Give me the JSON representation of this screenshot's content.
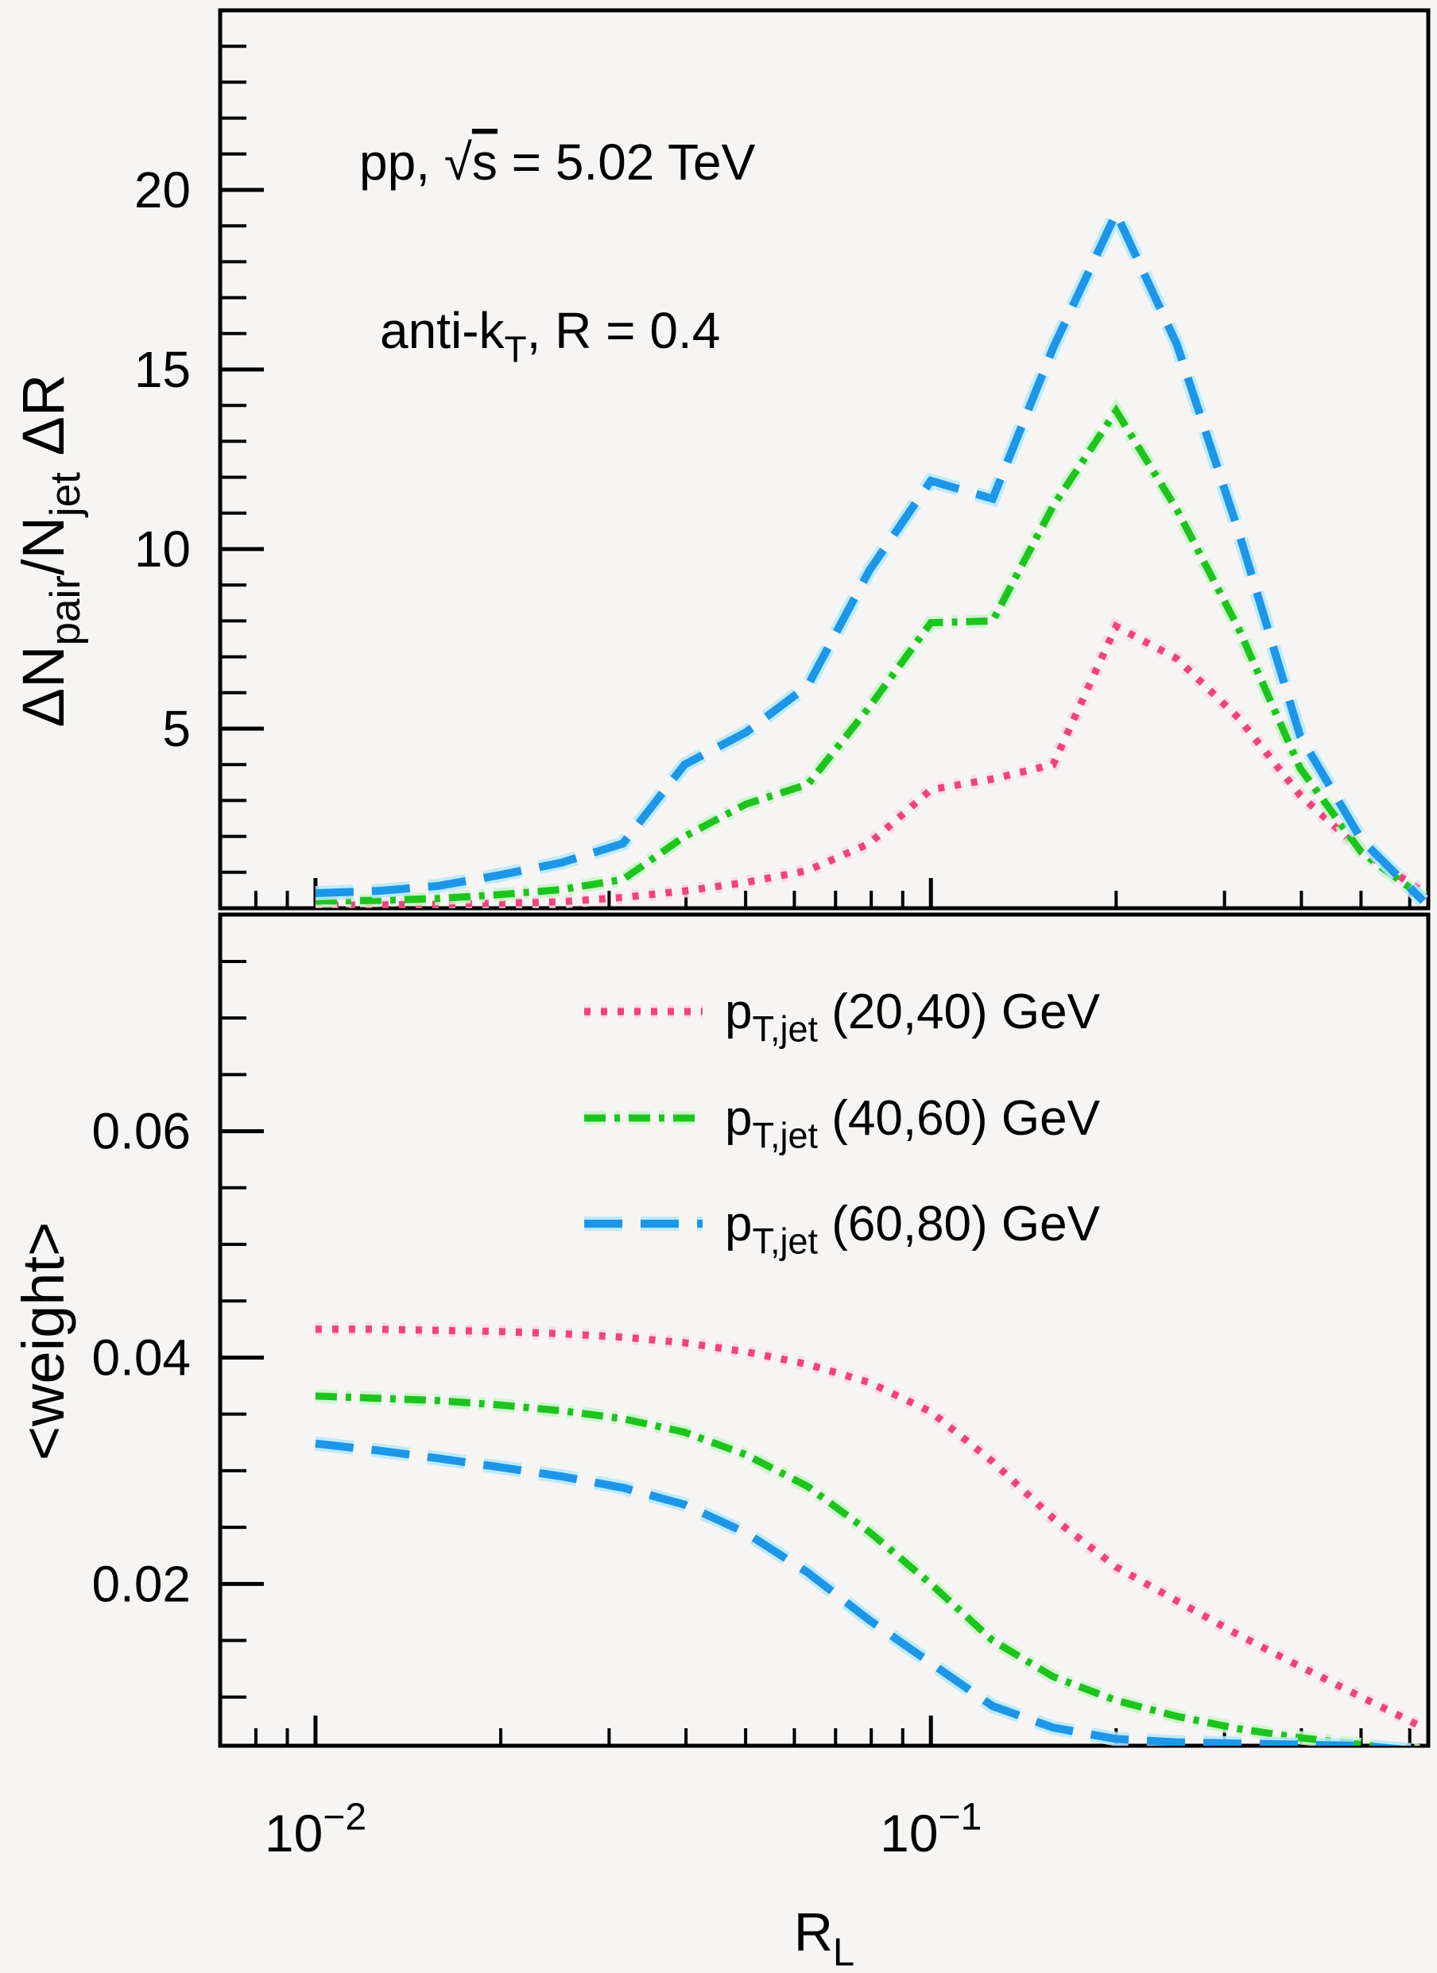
{
  "figure": {
    "background": "#f6f5f4",
    "frame_color": "#000000",
    "annotations": {
      "line1_text": "pp, √s = 5.02 TeV",
      "line1_parts": [
        {
          "t": "pp, "
        },
        {
          "t": "√"
        },
        {
          "t": "s",
          "over": true
        },
        {
          "t": " = 5.02 TeV"
        }
      ],
      "line2_text": "anti-kT, R = 0.4",
      "line2_parts": [
        {
          "t": "anti-k"
        },
        {
          "t": "T",
          "sub": true
        },
        {
          "t": ", R = 0.4"
        }
      ]
    },
    "axes": {
      "x_title_parts": [
        {
          "t": "R"
        },
        {
          "t": "L",
          "sub": true
        }
      ],
      "x_tick_label_parts": [
        {
          "at": 0.01,
          "parts": [
            {
              "t": "10"
            },
            {
              "t": "−2",
              "sup": true
            }
          ]
        },
        {
          "at": 0.1,
          "parts": [
            {
              "t": "10"
            },
            {
              "t": "−1",
              "sup": true
            }
          ]
        }
      ],
      "top_y_title_parts": [
        {
          "t": "ΔN"
        },
        {
          "t": "pair",
          "sub": true
        },
        {
          "t": "/N"
        },
        {
          "t": "jet",
          "sub": true
        },
        {
          "t": " ΔR"
        }
      ],
      "bottom_y_title": "<weight>",
      "top_y_tick_labels": [
        "5",
        "10",
        "15",
        "20"
      ],
      "bottom_y_tick_labels": [
        "0.02",
        "0.04",
        "0.06"
      ]
    },
    "legend": {
      "items": [
        {
          "series": "pt2040",
          "label_parts": [
            {
              "t": "p"
            },
            {
              "t": "T,jet",
              "sub": true
            },
            {
              "t": " (20,40) GeV"
            }
          ]
        },
        {
          "series": "pt4060",
          "label_parts": [
            {
              "t": "p"
            },
            {
              "t": "T,jet",
              "sub": true
            },
            {
              "t": " (40,60) GeV"
            }
          ]
        },
        {
          "series": "pt6080",
          "label_parts": [
            {
              "t": "p"
            },
            {
              "t": "T,jet",
              "sub": true
            },
            {
              "t": " (60,80) GeV"
            }
          ]
        }
      ]
    }
  },
  "chart_data": {
    "type": "line",
    "x_scale": "log",
    "title": "",
    "xlabel": "R_L",
    "xlim": [
      0.007,
      0.643
    ],
    "xticks_major": [
      0.01,
      0.1
    ],
    "xticks_minor": [
      0.008,
      0.009,
      0.02,
      0.03,
      0.04,
      0.05,
      0.06,
      0.07,
      0.08,
      0.09,
      0.2,
      0.3,
      0.4,
      0.5,
      0.6
    ],
    "annotations": [
      "pp, √s = 5.02 TeV",
      "anti-kT, R = 0.4"
    ],
    "legend_position": "bottom-panel-top-right",
    "grid": false,
    "x": [
      0.01,
      0.0126,
      0.0158,
      0.02,
      0.0251,
      0.0316,
      0.0398,
      0.0501,
      0.0631,
      0.0794,
      0.1,
      0.126,
      0.158,
      0.2,
      0.251,
      0.316,
      0.398,
      0.501,
      0.631
    ],
    "series_meta": [
      {
        "id": "pt2040",
        "label": "pT,jet (20,40) GeV",
        "color": "#f0437c",
        "halo": "#fcd6e6",
        "dash": "8 13",
        "width": 9
      },
      {
        "id": "pt4060",
        "label": "pT,jet (40,60) GeV",
        "color": "#1ec41e",
        "halo": "#c9f5c9",
        "dash": "27 11 7 11",
        "width": 9
      },
      {
        "id": "pt6080",
        "label": "pT,jet (60,80) GeV",
        "color": "#1d96e8",
        "halo": "#b5e7fb",
        "dash": "48 23",
        "width": 10
      }
    ],
    "panels": [
      {
        "id": "top",
        "ylabel": "ΔN_pair/N_jet ΔR",
        "ylim": [
          0,
          25
        ],
        "yticks_major": [
          5,
          10,
          15,
          20
        ],
        "yticks_minor_step": 1,
        "series": [
          {
            "meta": 0,
            "name": "pT,jet (20,40) GeV",
            "values": [
              0.08,
              0.09,
              0.11,
              0.14,
              0.18,
              0.3,
              0.48,
              0.72,
              1.05,
              1.8,
              3.3,
              3.6,
              4.0,
              7.85,
              6.95,
              5.3,
              3.15,
              1.6,
              0.45
            ]
          },
          {
            "meta": 1,
            "name": "pT,jet (40,60) GeV",
            "values": [
              0.2,
              0.22,
              0.27,
              0.38,
              0.52,
              0.8,
              2.0,
              2.9,
              3.45,
              5.6,
              7.95,
              8.0,
              11.2,
              13.85,
              11.1,
              7.8,
              3.9,
              1.55,
              0.3
            ]
          },
          {
            "meta": 2,
            "name": "pT,jet (60,80) GeV",
            "values": [
              0.42,
              0.48,
              0.62,
              0.93,
              1.27,
              1.8,
              4.0,
              4.9,
              6.2,
              9.4,
              11.9,
              11.4,
              15.6,
              19.35,
              15.7,
              10.5,
              4.8,
              1.9,
              0.2
            ]
          }
        ]
      },
      {
        "id": "bottom",
        "ylabel": "<weight>",
        "ylim": [
          0.0057,
          0.0797
        ],
        "yticks_major": [
          0.02,
          0.04,
          0.06
        ],
        "yticks_minor": [
          0.01,
          0.015,
          0.025,
          0.03,
          0.035,
          0.045,
          0.05,
          0.055,
          0.065,
          0.07,
          0.075
        ],
        "series": [
          {
            "meta": 0,
            "name": "pT,jet (20,40) GeV",
            "values": [
              0.0425,
              0.0425,
              0.0424,
              0.0423,
              0.0421,
              0.0418,
              0.0413,
              0.0405,
              0.0394,
              0.0378,
              0.0352,
              0.0308,
              0.0258,
              0.0215,
              0.0185,
              0.0155,
              0.0127,
              0.01,
              0.0073
            ]
          },
          {
            "meta": 1,
            "name": "pT,jet (40,60) GeV",
            "values": [
              0.0366,
              0.0364,
              0.0362,
              0.0358,
              0.0353,
              0.0346,
              0.0334,
              0.0314,
              0.0286,
              0.0246,
              0.02,
              0.015,
              0.0118,
              0.0097,
              0.0083,
              0.0072,
              0.0064,
              0.0058,
              0.0052
            ]
          },
          {
            "meta": 2,
            "name": "pT,jet (60,80) GeV",
            "values": [
              0.0324,
              0.0318,
              0.0311,
              0.0303,
              0.0295,
              0.0285,
              0.027,
              0.0245,
              0.021,
              0.0168,
              0.013,
              0.0092,
              0.0073,
              0.0063,
              0.006,
              0.0059,
              0.0058,
              0.0057,
              0.0052
            ]
          }
        ]
      }
    ]
  }
}
